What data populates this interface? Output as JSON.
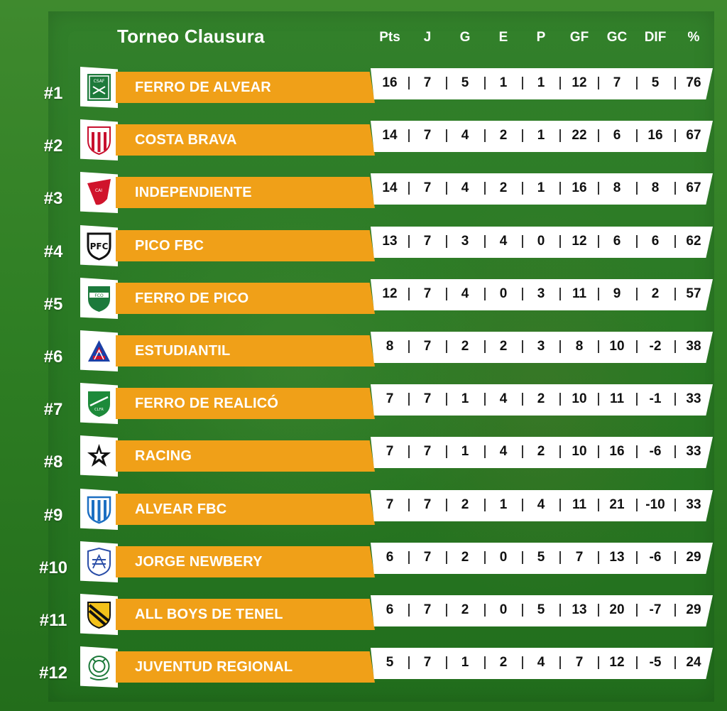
{
  "title": "Torneo Clausura",
  "colors": {
    "team_bar": "#f0a018",
    "stats_bar": "#ffffff",
    "background": "#2f7d22"
  },
  "headers": [
    "Pts",
    "J",
    "G",
    "E",
    "P",
    "GF",
    "GC",
    "DIF",
    "%"
  ],
  "rows": [
    {
      "rank": "#1",
      "team": "FERRO DE ALVEAR",
      "logo": "ferro-alvear-crest-icon",
      "stats": [
        "16",
        "7",
        "5",
        "1",
        "1",
        "12",
        "7",
        "5",
        "76"
      ]
    },
    {
      "rank": "#2",
      "team": "COSTA BRAVA",
      "logo": "costa-brava-crest-icon",
      "stats": [
        "14",
        "7",
        "4",
        "2",
        "1",
        "22",
        "6",
        "16",
        "67"
      ]
    },
    {
      "rank": "#3",
      "team": "INDEPENDIENTE",
      "logo": "independiente-crest-icon",
      "stats": [
        "14",
        "7",
        "4",
        "2",
        "1",
        "16",
        "8",
        "8",
        "67"
      ]
    },
    {
      "rank": "#4",
      "team": "PICO FBC",
      "logo": "pico-fbc-crest-icon",
      "stats": [
        "13",
        "7",
        "3",
        "4",
        "0",
        "12",
        "6",
        "6",
        "62"
      ]
    },
    {
      "rank": "#5",
      "team": "FERRO DE PICO",
      "logo": "ferro-pico-crest-icon",
      "stats": [
        "12",
        "7",
        "4",
        "0",
        "3",
        "11",
        "9",
        "2",
        "57"
      ]
    },
    {
      "rank": "#6",
      "team": "ESTUDIANTIL",
      "logo": "estudiantil-crest-icon",
      "stats": [
        "8",
        "7",
        "2",
        "2",
        "3",
        "8",
        "10",
        "-2",
        "38"
      ]
    },
    {
      "rank": "#7",
      "team": "FERRO DE REALICÓ",
      "logo": "ferro-realico-crest-icon",
      "stats": [
        "7",
        "7",
        "1",
        "4",
        "2",
        "10",
        "11",
        "-1",
        "33"
      ]
    },
    {
      "rank": "#8",
      "team": "RACING",
      "logo": "racing-star-icon",
      "stats": [
        "7",
        "7",
        "1",
        "4",
        "2",
        "10",
        "16",
        "-6",
        "33"
      ]
    },
    {
      "rank": "#9",
      "team": "ALVEAR FBC",
      "logo": "alvear-fbc-crest-icon",
      "stats": [
        "7",
        "7",
        "2",
        "1",
        "4",
        "11",
        "21",
        "-10",
        "33"
      ]
    },
    {
      "rank": "#10",
      "team": "JORGE NEWBERY",
      "logo": "jorge-newbery-crest-icon",
      "stats": [
        "6",
        "7",
        "2",
        "0",
        "5",
        "7",
        "13",
        "-6",
        "29"
      ]
    },
    {
      "rank": "#11",
      "team": "ALL BOYS DE TENEL",
      "logo": "all-boys-crest-icon",
      "stats": [
        "6",
        "7",
        "2",
        "0",
        "5",
        "13",
        "20",
        "-7",
        "29"
      ]
    },
    {
      "rank": "#12",
      "team": "JUVENTUD REGIONAL",
      "logo": "juventud-regional-crest-icon",
      "stats": [
        "5",
        "7",
        "1",
        "2",
        "4",
        "7",
        "12",
        "-5",
        "24"
      ]
    }
  ]
}
